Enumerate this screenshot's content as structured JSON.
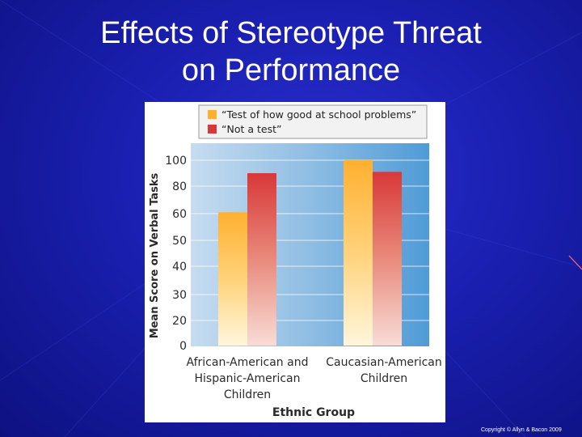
{
  "slide": {
    "title_line1": "Effects of Stereotype Threat",
    "title_line2": "on Performance",
    "copyright": "Copyright © Allyn & Bacon 2009"
  },
  "colors": {
    "background": "#1a1fb0",
    "series_test": "#ffb030",
    "series_not_test": "#d83838",
    "plot_background": "#7ab3df"
  },
  "chart_data": {
    "type": "bar",
    "title": "",
    "xlabel": "Ethnic Group",
    "ylabel": "Mean Score on Verbal Tasks",
    "ylim": [
      0,
      100
    ],
    "yticks": [
      0,
      20,
      30,
      40,
      50,
      60,
      80,
      100
    ],
    "categories": [
      [
        "African-American and",
        "Hispanic-American",
        "Children"
      ],
      [
        "Caucasian-American",
        "Children"
      ]
    ],
    "series": [
      {
        "name": "“Test of how good at school problems”",
        "values": [
          61,
          100
        ]
      },
      {
        "name": "“Not a test”",
        "values": [
          90,
          91
        ]
      }
    ],
    "legend_position": "top",
    "grid": true
  }
}
